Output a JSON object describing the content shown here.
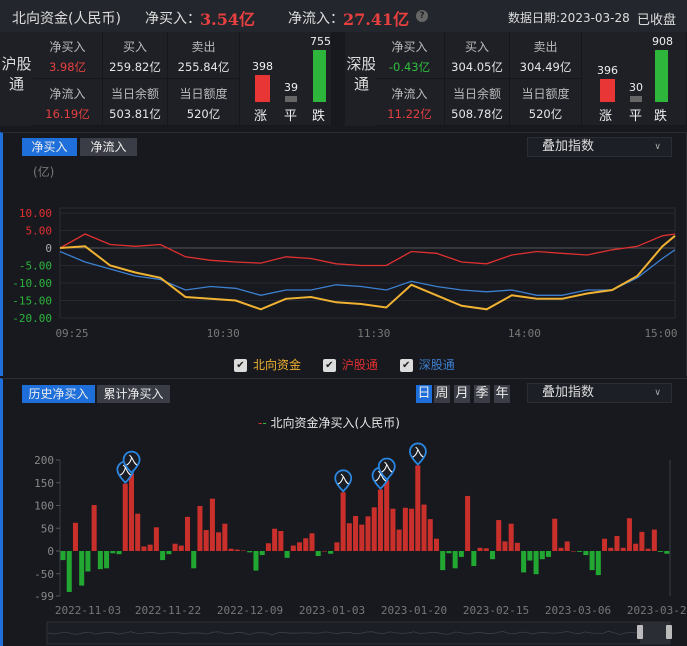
{
  "header": {
    "title": "北向资金(人民币)",
    "net_buy_label": "净买入：",
    "net_buy": "3.54亿",
    "net_inflow_label": "净流入：",
    "net_inflow": "27.41亿",
    "help_icon": "question-circle-icon",
    "date": "数据日期:2023-03-28",
    "status": "已收盘"
  },
  "colors": {
    "up": "#e83535",
    "down": "#2db53c",
    "north": "#f0b232",
    "sh": "#e03030",
    "sz": "#3d7fd0",
    "accent": "#1e6fd9"
  },
  "sh": {
    "name": "沪股通",
    "net_buy_label": "净买入",
    "net_buy": "3.98亿",
    "buy_label": "买入",
    "buy": "259.82亿",
    "sell_label": "卖出",
    "sell": "255.84亿",
    "net_inflow_label": "净流入",
    "net_inflow": "16.19亿",
    "balance_label": "当日余额",
    "balance": "503.81亿",
    "quota_label": "当日额度",
    "quota": "520亿",
    "up": "398",
    "flat": "39",
    "down": "755",
    "up_label": "涨",
    "flat_label": "平",
    "down_label": "跌"
  },
  "sz": {
    "name": "深股通",
    "net_buy_label": "净买入",
    "net_buy": "-0.43亿",
    "buy_label": "买入",
    "buy": "304.05亿",
    "sell_label": "卖出",
    "sell": "304.49亿",
    "net_inflow_label": "净流入",
    "net_inflow": "11.22亿",
    "balance_label": "当日余额",
    "balance": "508.78亿",
    "quota_label": "当日额度",
    "quota": "520亿",
    "up": "396",
    "flat": "30",
    "down": "908",
    "up_label": "涨",
    "flat_label": "平",
    "down_label": "跌"
  },
  "intraday": {
    "tabs": [
      "净买入",
      "净流入"
    ],
    "overlay": "叠加指数",
    "unit": "(亿)",
    "legend": [
      "北向资金",
      "沪股通",
      "深股通"
    ]
  },
  "history": {
    "tabs": [
      "历史净买入",
      "累计净买入"
    ],
    "periods": [
      "日",
      "周",
      "月",
      "季",
      "年"
    ],
    "overlay": "叠加指数",
    "legend": "北向资金净买入(人民币)",
    "marker_label": "入"
  },
  "chart_data": [
    {
      "type": "line",
      "ylabel": "(亿)",
      "ylim": [
        -20,
        10
      ],
      "yticks": [
        "10.00",
        "5.00",
        "0",
        "-5.00",
        "-10.00",
        "-15.00",
        "-20.00"
      ],
      "xticks": [
        "09:25",
        "10:30",
        "11:30",
        "14:00",
        "15:00"
      ],
      "x": [
        "09:25",
        "09:35",
        "09:45",
        "09:55",
        "10:05",
        "10:15",
        "10:25",
        "10:35",
        "10:45",
        "10:55",
        "11:05",
        "11:15",
        "11:25",
        "13:05",
        "13:15",
        "13:25",
        "13:35",
        "13:45",
        "13:55",
        "14:05",
        "14:15",
        "14:25",
        "14:35",
        "14:45",
        "14:55",
        "15:00"
      ],
      "series": [
        {
          "name": "北向资金",
          "values": [
            0,
            0.5,
            -5,
            -7,
            -8.5,
            -14,
            -14.5,
            -15,
            -17.5,
            -14.5,
            -14,
            -15.5,
            -16,
            -17,
            -10.5,
            -13.5,
            -16.5,
            -17.5,
            -13.5,
            -14.5,
            -14.5,
            -13,
            -12,
            -8,
            0.5,
            3.5
          ]
        },
        {
          "name": "沪股通",
          "values": [
            0,
            4,
            1,
            0.5,
            1,
            -2.5,
            -3.5,
            -4,
            -4.3,
            -2.5,
            -3,
            -4.5,
            -5,
            -5,
            -1,
            -1.5,
            -4,
            -4.5,
            -2,
            -1,
            -1.5,
            -2,
            -0.5,
            0.5,
            3.5,
            4
          ]
        },
        {
          "name": "深股通",
          "values": [
            -1,
            -4,
            -6,
            -8,
            -9,
            -12,
            -11,
            -11.5,
            -13.5,
            -12,
            -12,
            -10.5,
            -11,
            -12,
            -9.5,
            -11,
            -12,
            -12.5,
            -12,
            -13.5,
            -13.5,
            -12,
            -12,
            -8.5,
            -3,
            -0.5
          ]
        }
      ]
    },
    {
      "type": "bar",
      "title": "北向资金净买入(人民币)",
      "ylim": [
        -99,
        200
      ],
      "yticks": [
        "200",
        "150",
        "100",
        "50",
        "0",
        "-50",
        "-99"
      ],
      "xticks": [
        "2022-11-03",
        "2022-11-22",
        "2022-12-09",
        "2023-01-03",
        "2023-01-20",
        "2023-02-15",
        "2023-03-06",
        "2023-03-23"
      ],
      "values": [
        -20,
        -90,
        62,
        -76,
        -45,
        101,
        -40,
        -38,
        -5,
        -7,
        148,
        170,
        82,
        10,
        14,
        52,
        -20,
        -7,
        16,
        12,
        75,
        -38,
        99,
        46,
        115,
        41,
        60,
        5,
        3,
        1,
        -3,
        -43,
        -9,
        17,
        49,
        44,
        -15,
        12,
        19,
        28,
        39,
        -11,
        0,
        -6,
        19,
        129,
        61,
        77,
        58,
        76,
        96,
        135,
        155,
        93,
        47,
        95,
        93,
        188,
        102,
        70,
        27,
        -42,
        -5,
        -38,
        -13,
        121,
        -33,
        7,
        6,
        -18,
        68,
        21,
        60,
        18,
        -47,
        -21,
        -51,
        -18,
        -13,
        71,
        7,
        21,
        0,
        -2,
        -9,
        -42,
        -53,
        27,
        7,
        33,
        7,
        72,
        16,
        42,
        5,
        47,
        -2,
        -6
      ],
      "marked": [
        10,
        11,
        45,
        51,
        52,
        57
      ]
    }
  ]
}
